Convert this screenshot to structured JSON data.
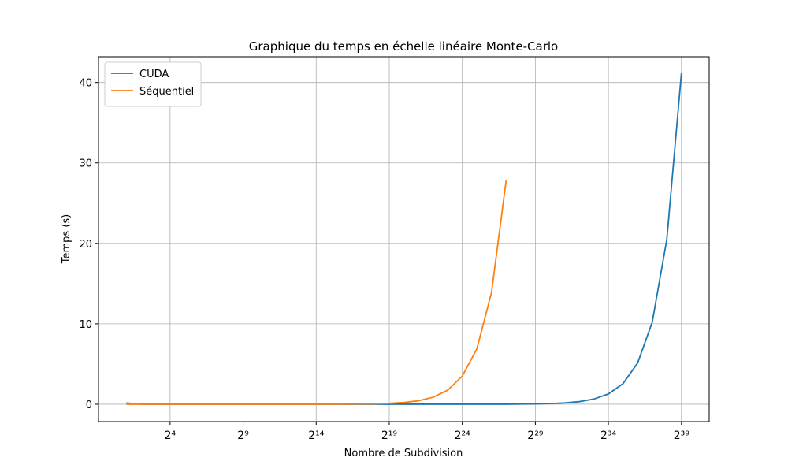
{
  "chart_data": {
    "type": "line",
    "title": "Graphique du temps en échelle linéaire Monte-Carlo",
    "x_label": "Nombre de Subdivision",
    "y_label": "Temps (s)",
    "x": [
      2,
      4,
      8,
      16,
      32,
      64,
      128,
      256,
      512,
      1024,
      2048,
      4096,
      8192,
      16384,
      32768,
      65536,
      131072,
      262144,
      524288,
      1048576,
      2097152,
      4194304,
      8388608,
      16777216,
      33554432,
      67108864,
      134217728,
      268435456,
      536870912,
      1073741824,
      2147483648,
      4294967296,
      8589934592,
      17179869184,
      34359738368,
      68719476736,
      137438953472,
      274877906944,
      549755813888
    ],
    "series": [
      {
        "name": "CUDA",
        "color": "#1f77b4",
        "values": [
          0.15,
          0.01,
          0,
          0,
          0,
          0,
          0,
          0,
          0,
          0,
          0,
          0,
          0,
          0,
          0,
          0,
          0,
          0,
          0,
          0,
          0,
          0,
          0,
          0,
          0,
          0,
          0,
          0.02,
          0.04,
          0.08,
          0.16,
          0.32,
          0.64,
          1.28,
          2.56,
          5.12,
          10.2,
          20.5,
          41.2
        ]
      },
      {
        "name": "Séquentiel",
        "color": "#ff7f0e",
        "values": [
          0,
          0,
          0,
          0,
          0,
          0,
          0,
          0,
          0,
          0,
          0,
          0,
          0,
          0,
          0.01,
          0.01,
          0.03,
          0.05,
          0.11,
          0.22,
          0.43,
          0.87,
          1.75,
          3.5,
          6.9,
          13.9,
          27.8,
          null,
          null,
          null,
          null,
          null,
          null,
          null,
          null,
          null,
          null,
          null,
          null
        ]
      }
    ],
    "x_scale": "log2",
    "xlim": [
      0.536,
      2050000000000.0
    ],
    "xticks": [
      {
        "value": 16,
        "label": "2⁴"
      },
      {
        "value": 512,
        "label": "2⁹"
      },
      {
        "value": 16384,
        "label": "2¹⁴"
      },
      {
        "value": 524288,
        "label": "2¹⁹"
      },
      {
        "value": 16777216,
        "label": "2²⁴"
      },
      {
        "value": 536870912,
        "label": "2²⁹"
      },
      {
        "value": 17179869184,
        "label": "2³⁴"
      },
      {
        "value": 549755813888,
        "label": "2³⁹"
      }
    ],
    "ylim": [
      -2.16,
      43.2
    ],
    "yticks": [
      0,
      10,
      20,
      30,
      40
    ],
    "grid": true,
    "legend": "upper-left"
  }
}
